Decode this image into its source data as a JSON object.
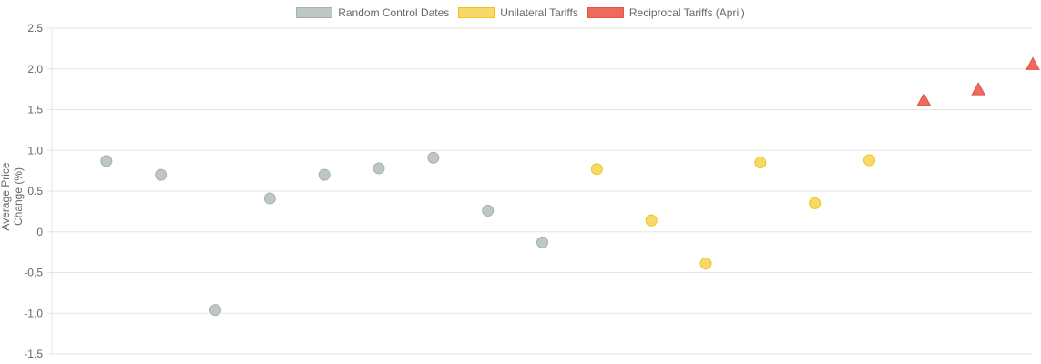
{
  "chart_data": {
    "type": "scatter",
    "title": "",
    "xlabel": "",
    "ylabel": "Average Price Change (%)",
    "ylim": [
      -1.5,
      2.5
    ],
    "xlim": [
      0,
      18
    ],
    "yticks": [
      "2.5",
      "2.0",
      "1.5",
      "1.0",
      "0.5",
      "0",
      "-0.5",
      "-1.0",
      "-1.5"
    ],
    "grid": true,
    "legend_position": "top",
    "series": [
      {
        "name": "Random Control Dates",
        "color": "#bdc7c5",
        "border": "#a6b0ae",
        "marker": "circle",
        "x": [
          1,
          2,
          3,
          4,
          5,
          6,
          7,
          8,
          9
        ],
        "y": [
          0.87,
          0.7,
          -0.96,
          0.41,
          0.7,
          0.78,
          0.91,
          0.26,
          -0.13
        ]
      },
      {
        "name": "Unilateral Tariffs",
        "color": "#f7d96b",
        "border": "#f0c419",
        "marker": "circle",
        "x": [
          10,
          11,
          12,
          13,
          14,
          15
        ],
        "y": [
          0.77,
          0.14,
          -0.39,
          0.85,
          0.35,
          0.88
        ]
      },
      {
        "name": "Reciprocal Tariffs (April)",
        "color": "#ec6b5e",
        "border": "#e05546",
        "marker": "triangle",
        "x": [
          16,
          17,
          18
        ],
        "y": [
          1.62,
          1.75,
          2.06
        ]
      }
    ]
  }
}
